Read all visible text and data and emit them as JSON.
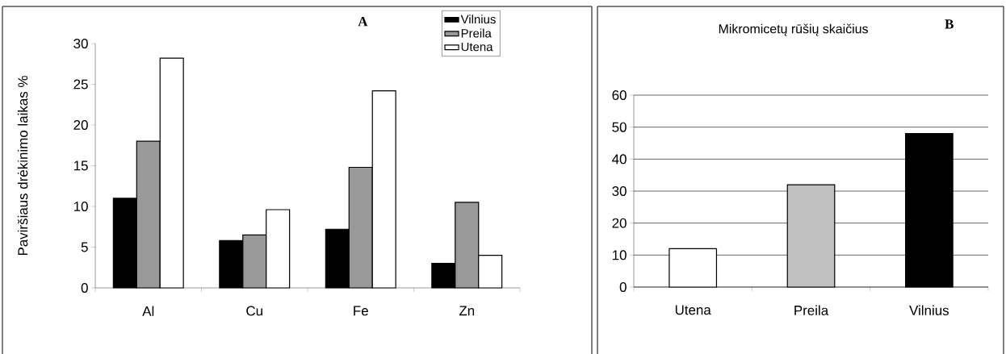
{
  "chart_data": [
    {
      "type": "bar",
      "annotations": [
        "A"
      ],
      "ylabel": "Paviršiaus drėkinimo laikas %",
      "categories": [
        "Al",
        "Cu",
        "Fe",
        "Zn"
      ],
      "series": [
        {
          "name": "Vilnius",
          "color": "#000000",
          "values": [
            11,
            5.8,
            7.2,
            3
          ]
        },
        {
          "name": "Preila",
          "color": "#999999",
          "values": [
            18,
            6.5,
            14.8,
            10.5
          ]
        },
        {
          "name": "Utena",
          "color": "#ffffff",
          "values": [
            28.2,
            9.6,
            24.2,
            4
          ]
        }
      ],
      "ylim": [
        0,
        30
      ],
      "yticks": [
        0,
        5,
        10,
        15,
        20,
        25,
        30
      ],
      "legend": "top right"
    },
    {
      "type": "bar",
      "title": "Mikromicetų rūšių skaičius",
      "annotations": [
        "B"
      ],
      "categories": [
        "Utena",
        "Preila",
        "Vilnius"
      ],
      "values": [
        12,
        32,
        48
      ],
      "colors": [
        "#ffffff",
        "#c0c0c0",
        "#000000"
      ],
      "ylim": [
        0,
        60
      ],
      "yticks": [
        0,
        10,
        20,
        30,
        40,
        50,
        60
      ],
      "grid": "y"
    }
  ]
}
